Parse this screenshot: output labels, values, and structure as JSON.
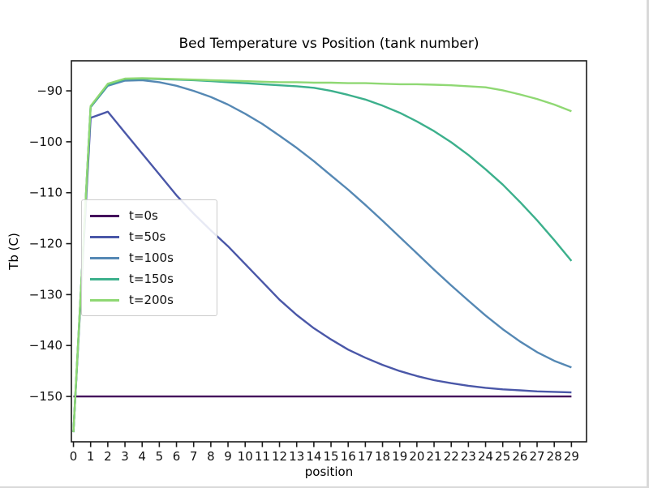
{
  "chart_data": {
    "type": "line",
    "title": "Bed Temperature vs Position (tank number)",
    "xlabel": "position",
    "ylabel": "Tb (C)",
    "grid": false,
    "legend_position": "upper-left-inside",
    "xlim": [
      -0.12,
      29.88
    ],
    "ylim": [
      -158.9,
      -84.1
    ],
    "x": [
      0,
      1,
      2,
      3,
      4,
      5,
      6,
      7,
      8,
      9,
      10,
      11,
      12,
      13,
      14,
      15,
      16,
      17,
      18,
      19,
      20,
      21,
      22,
      23,
      24,
      25,
      26,
      27,
      28,
      29
    ],
    "xtick_labels": [
      "0",
      "1",
      "2",
      "3",
      "4",
      "5",
      "6",
      "7",
      "8",
      "9",
      "10",
      "11",
      "12",
      "13",
      "14",
      "15",
      "16",
      "17",
      "18",
      "19",
      "20",
      "21",
      "22",
      "23",
      "24",
      "25",
      "26",
      "27",
      "28",
      "29"
    ],
    "yticks": [
      -90,
      -100,
      -110,
      -120,
      -130,
      -140,
      -150
    ],
    "ytick_labels": [
      "−90",
      "−100",
      "−110",
      "−120",
      "−130",
      "−140",
      "−150"
    ],
    "series": [
      {
        "name": "t=0s",
        "color": "#440f5c",
        "values": [
          -150,
          -150,
          -150,
          -150,
          -150,
          -150,
          -150,
          -150,
          -150,
          -150,
          -150,
          -150,
          -150,
          -150,
          -150,
          -150,
          -150,
          -150,
          -150,
          -150,
          -150,
          -150,
          -150,
          -150,
          -150,
          -150,
          -150,
          -150,
          -150,
          -150
        ]
      },
      {
        "name": "t=50s",
        "color": "#4a57a8",
        "values": [
          -157,
          -95.3,
          -94.1,
          -98.2,
          -102.3,
          -106.4,
          -110.5,
          -114.1,
          -117.4,
          -120.5,
          -124,
          -127.5,
          -131,
          -134,
          -136.6,
          -138.8,
          -140.8,
          -142.4,
          -143.8,
          -145,
          -146,
          -146.8,
          -147.4,
          -147.9,
          -148.3,
          -148.6,
          -148.8,
          -149,
          -149.1,
          -149.2
        ]
      },
      {
        "name": "t=100s",
        "color": "#5588b4",
        "values": [
          -157,
          -93.2,
          -89,
          -88,
          -87.9,
          -88.3,
          -89,
          -90,
          -91.2,
          -92.7,
          -94.5,
          -96.5,
          -98.8,
          -101.2,
          -103.8,
          -106.6,
          -109.4,
          -112.4,
          -115.5,
          -118.7,
          -121.9,
          -125.1,
          -128.2,
          -131.2,
          -134.1,
          -136.8,
          -139.2,
          -141.3,
          -143,
          -144.3
        ]
      },
      {
        "name": "t=150s",
        "color": "#3cb08c",
        "values": [
          -157,
          -93.1,
          -88.8,
          -87.7,
          -87.6,
          -87.7,
          -87.8,
          -87.9,
          -88.1,
          -88.3,
          -88.5,
          -88.7,
          -88.9,
          -89.1,
          -89.4,
          -90,
          -90.8,
          -91.7,
          -92.9,
          -94.3,
          -96,
          -97.9,
          -100.1,
          -102.6,
          -105.4,
          -108.4,
          -111.8,
          -115.4,
          -119.3,
          -123.4
        ]
      },
      {
        "name": "t=200s",
        "color": "#8fd873",
        "values": [
          -157,
          -93,
          -88.6,
          -87.6,
          -87.5,
          -87.6,
          -87.7,
          -87.8,
          -87.9,
          -88,
          -88.1,
          -88.2,
          -88.3,
          -88.3,
          -88.4,
          -88.4,
          -88.5,
          -88.5,
          -88.6,
          -88.7,
          -88.7,
          -88.8,
          -88.9,
          -89.1,
          -89.3,
          -89.9,
          -90.7,
          -91.6,
          -92.7,
          -94
        ]
      }
    ]
  }
}
